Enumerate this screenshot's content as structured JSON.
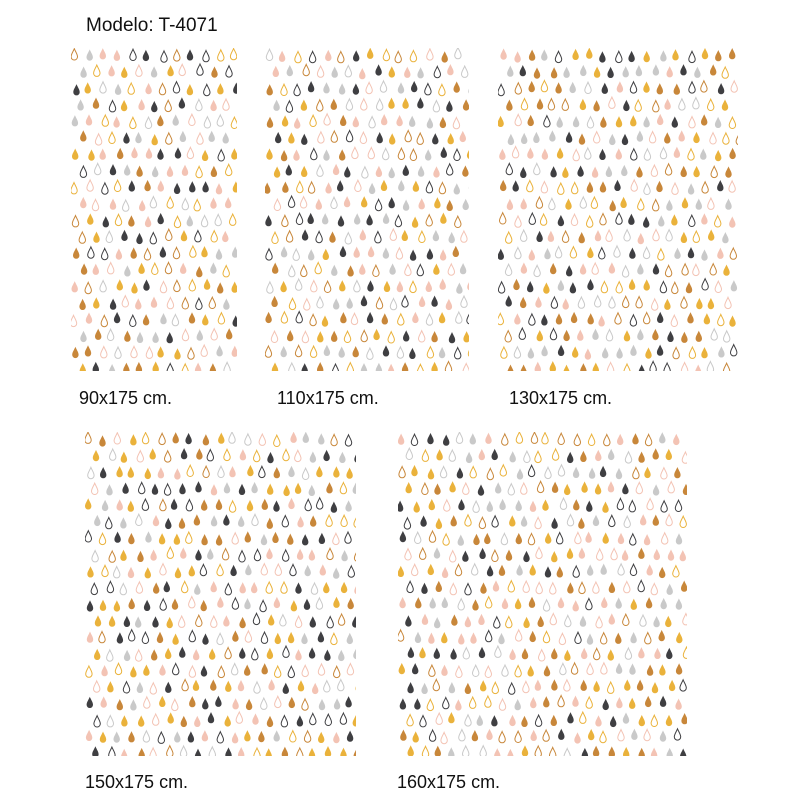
{
  "header": {
    "model_title": "Modelo: T-4071"
  },
  "pattern": {
    "name": "raindrops",
    "colors": [
      "#3f3f42",
      "#c9c9c9",
      "#f3c3b4",
      "#eab23b",
      "#c8873a"
    ]
  },
  "panels": [
    {
      "id": "90",
      "label": "90x175 cm."
    },
    {
      "id": "110",
      "label": "110x175 cm."
    },
    {
      "id": "130",
      "label": "130x175 cm."
    },
    {
      "id": "150",
      "label": "150x175 cm."
    },
    {
      "id": "160",
      "label": "160x175 cm."
    }
  ]
}
